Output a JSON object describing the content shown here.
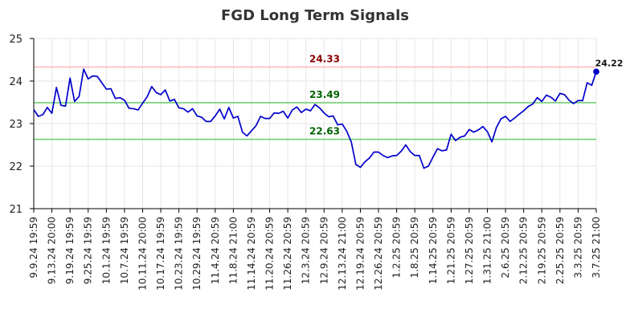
{
  "chart_data": {
    "type": "line",
    "title": "FGD Long Term Signals",
    "xlabel": "",
    "ylabel": "",
    "ylim": [
      21,
      25
    ],
    "y_ticks": [
      "21",
      "22",
      "23",
      "24",
      "25"
    ],
    "x_tick_labels": [
      "9.9.24 19:59",
      "9.13.24 20:00",
      "9.19.24 19:59",
      "9.25.24 19:59",
      "10.1.24 19:59",
      "10.7.24 19:59",
      "10.11.24 20:00",
      "10.17.24 19:59",
      "10.23.24 19:59",
      "10.29.24 19:59",
      "11.4.24 20:59",
      "11.8.24 21:00",
      "11.14.24 20:59",
      "11.20.24 20:59",
      "11.26.24 20:59",
      "12.3.24 20:59",
      "12.9.24 20:59",
      "12.13.24 21:00",
      "12.19.24 20:59",
      "12.26.24 20:59",
      "1.2.25 20:59",
      "1.8.25 20:59",
      "1.14.25 20:59",
      "1.21.25 20:59",
      "1.27.25 20:59",
      "1.31.25 21:00",
      "2.6.25 20:59",
      "2.12.25 20:59",
      "2.19.25 20:59",
      "2.25.25 20:59",
      "3.3.25 20:59",
      "3.7.25 21:00"
    ],
    "grid": true,
    "series": [
      {
        "values": [
          23.33,
          23.17,
          23.21,
          23.38,
          23.24,
          23.85,
          23.43,
          23.41,
          24.07,
          23.52,
          23.64,
          24.28,
          24.05,
          24.12,
          24.11,
          23.96,
          23.81,
          23.82,
          23.59,
          23.61,
          23.55,
          23.36,
          23.35,
          23.32,
          23.48,
          23.63,
          23.87,
          23.73,
          23.68,
          23.79,
          23.53,
          23.57,
          23.37,
          23.35,
          23.27,
          23.35,
          23.18,
          23.15,
          23.05,
          23.05,
          23.18,
          23.34,
          23.11,
          23.38,
          23.13,
          23.17,
          22.8,
          22.71,
          22.83,
          22.95,
          23.17,
          23.12,
          23.12,
          23.25,
          23.24,
          23.29,
          23.13,
          23.32,
          23.39,
          23.26,
          23.34,
          23.3,
          23.45,
          23.37,
          23.25,
          23.16,
          23.18,
          22.97,
          22.99,
          22.82,
          22.57,
          22.04,
          21.97,
          22.1,
          22.19,
          22.33,
          22.33,
          22.25,
          22.2,
          22.24,
          22.25,
          22.35,
          22.5,
          22.34,
          22.25,
          22.25,
          21.95,
          22.0,
          22.21,
          22.41,
          22.36,
          22.38,
          22.75,
          22.6,
          22.68,
          22.71,
          22.86,
          22.8,
          22.85,
          22.93,
          22.81,
          22.57,
          22.91,
          23.11,
          23.17,
          23.05,
          23.13,
          23.22,
          23.3,
          23.4,
          23.46,
          23.61,
          23.52,
          23.67,
          23.62,
          23.53,
          23.71,
          23.68,
          23.55,
          23.47,
          23.54,
          23.54,
          23.96,
          23.9,
          24.22
        ],
        "color": "#0000cc"
      }
    ],
    "reference_lines": [
      {
        "label": "24.33",
        "value": 24.33,
        "color": "#ffb6b6",
        "label_color": "#8b0000"
      },
      {
        "label": "23.49",
        "value": 23.49,
        "color": "#66cc66",
        "label_color": "#006400"
      },
      {
        "label": "22.63",
        "value": 22.63,
        "color": "#66cc66",
        "label_color": "#006400"
      }
    ],
    "last_point_label": "24.22"
  }
}
